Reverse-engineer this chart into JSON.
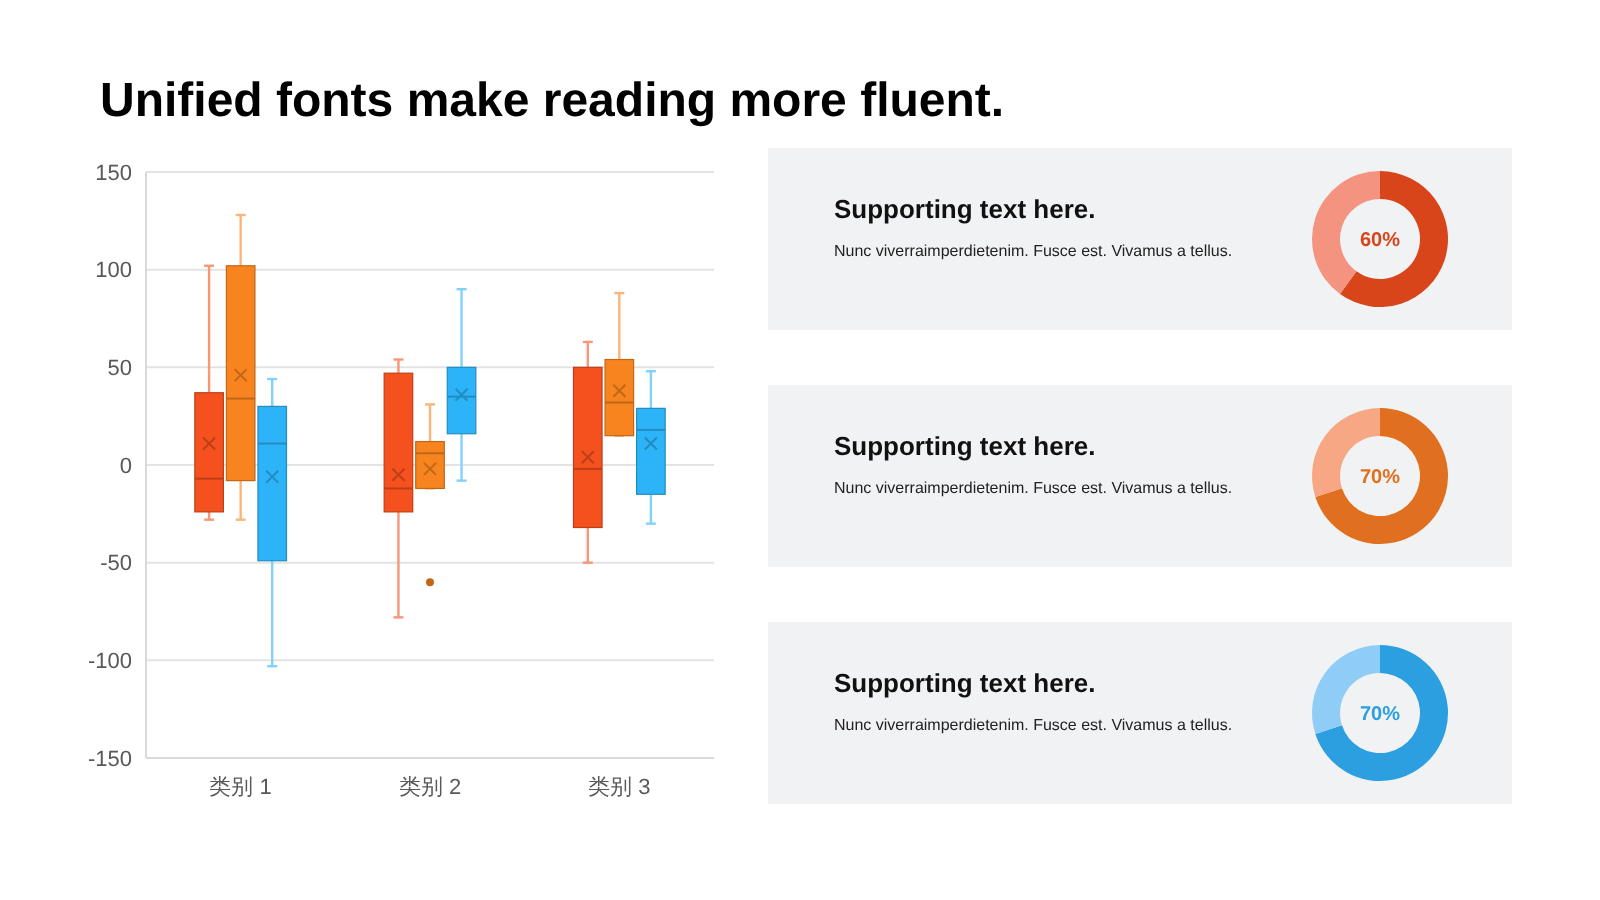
{
  "chart_data": [
    {
      "type": "box",
      "title": "Unified fonts make reading more fluent.",
      "categories": [
        "类别 1",
        "类别 2",
        "类别 3"
      ],
      "ylim": [
        -150,
        150
      ],
      "yticks": [
        -150,
        -100,
        -50,
        0,
        50,
        100,
        150
      ],
      "grid": "y",
      "series": [
        {
          "color": "#f4511e",
          "boxes": [
            {
              "low": -28,
              "q1": -24,
              "median": -7,
              "q3": 37,
              "high": 102,
              "mean": 11
            },
            {
              "low": -78,
              "q1": -24,
              "median": -12,
              "q3": 47,
              "high": 54,
              "mean": -5
            },
            {
              "low": -50,
              "q1": -32,
              "median": -2,
              "q3": 50,
              "high": 63,
              "mean": 4
            }
          ]
        },
        {
          "color": "#f7841f",
          "boxes": [
            {
              "low": -28,
              "q1": -8,
              "median": 34,
              "q3": 102,
              "high": 128,
              "mean": 46
            },
            {
              "low": -12,
              "q1": -12,
              "median": 6,
              "q3": 12,
              "high": 31,
              "mean": -2,
              "outliers": [
                -60
              ]
            },
            {
              "low": 15,
              "q1": 15,
              "median": 32,
              "q3": 54,
              "high": 88,
              "mean": 38
            }
          ]
        },
        {
          "color": "#2db3f7",
          "boxes": [
            {
              "low": -103,
              "q1": -49,
              "median": 11,
              "q3": 30,
              "high": 44,
              "mean": -6
            },
            {
              "low": -8,
              "q1": 16,
              "median": 35,
              "q3": 50,
              "high": 90,
              "mean": 36
            },
            {
              "low": -30,
              "q1": -15,
              "median": 18,
              "q3": 29,
              "high": 48,
              "mean": 11
            }
          ]
        }
      ]
    },
    {
      "type": "donut",
      "title": "Supporting text here.",
      "subtitle": "Nunc viverraimperdietenim. Fusce est. Vivamus a tellus.",
      "categories": [
        null,
        null
      ],
      "values": [
        60,
        40
      ],
      "colors": [
        "#d9451b",
        "#f4937f"
      ],
      "value_labels": [
        "60%",
        null
      ]
    },
    {
      "type": "donut",
      "title": "Supporting text here.",
      "subtitle": "Nunc viverraimperdietenim. Fusce est. Vivamus a tellus.",
      "categories": [
        null,
        null
      ],
      "values": [
        70,
        30
      ],
      "colors": [
        "#e0701f",
        "#f7a783"
      ],
      "value_labels": [
        "70%",
        null
      ]
    },
    {
      "type": "donut",
      "title": "Supporting text here.",
      "subtitle": "Nunc viverraimperdietenim. Fusce est. Vivamus a tellus.",
      "categories": [
        null,
        null
      ],
      "values": [
        70,
        30
      ],
      "colors": [
        "#2b9fe0",
        "#8fcdf7"
      ],
      "value_labels": [
        "70%",
        null
      ]
    }
  ]
}
